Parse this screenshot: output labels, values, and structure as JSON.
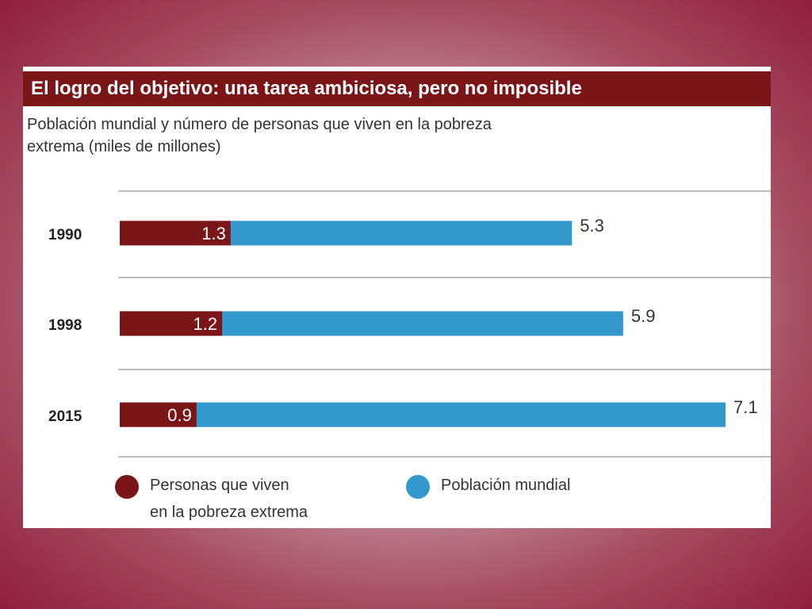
{
  "chart_data": {
    "type": "bar",
    "orientation": "horizontal",
    "title": "El logro del objetivo: una tarea ambiciosa, pero no imposible",
    "subtitle_line1": "Población mundial y número de personas que viven en la pobreza",
    "subtitle_line2": "extrema (miles de millones)",
    "categories": [
      "1990",
      "1998",
      "2015"
    ],
    "series": [
      {
        "name": "Personas que viven en la pobreza extrema",
        "values": [
          1.3,
          1.2,
          0.9
        ],
        "labels": [
          "1.3",
          "1.2",
          "0.9"
        ],
        "color": "#7a1518"
      },
      {
        "name": "Población mundial",
        "values": [
          5.3,
          5.9,
          7.1
        ],
        "labels": [
          "5.3",
          "5.9",
          "7.1"
        ],
        "color": "#3399cc"
      }
    ],
    "legend": {
      "position": "bottom",
      "poverty_line1": "Personas que viven",
      "poverty_line2": "en la pobreza extrema",
      "population": "Población mundial"
    },
    "grid": true,
    "xlim": [
      0,
      7.1
    ]
  },
  "colors": {
    "frame": "#8e1f3c",
    "title_bg": "#7a1518",
    "poverty": "#7a1518",
    "population": "#3399cc"
  }
}
